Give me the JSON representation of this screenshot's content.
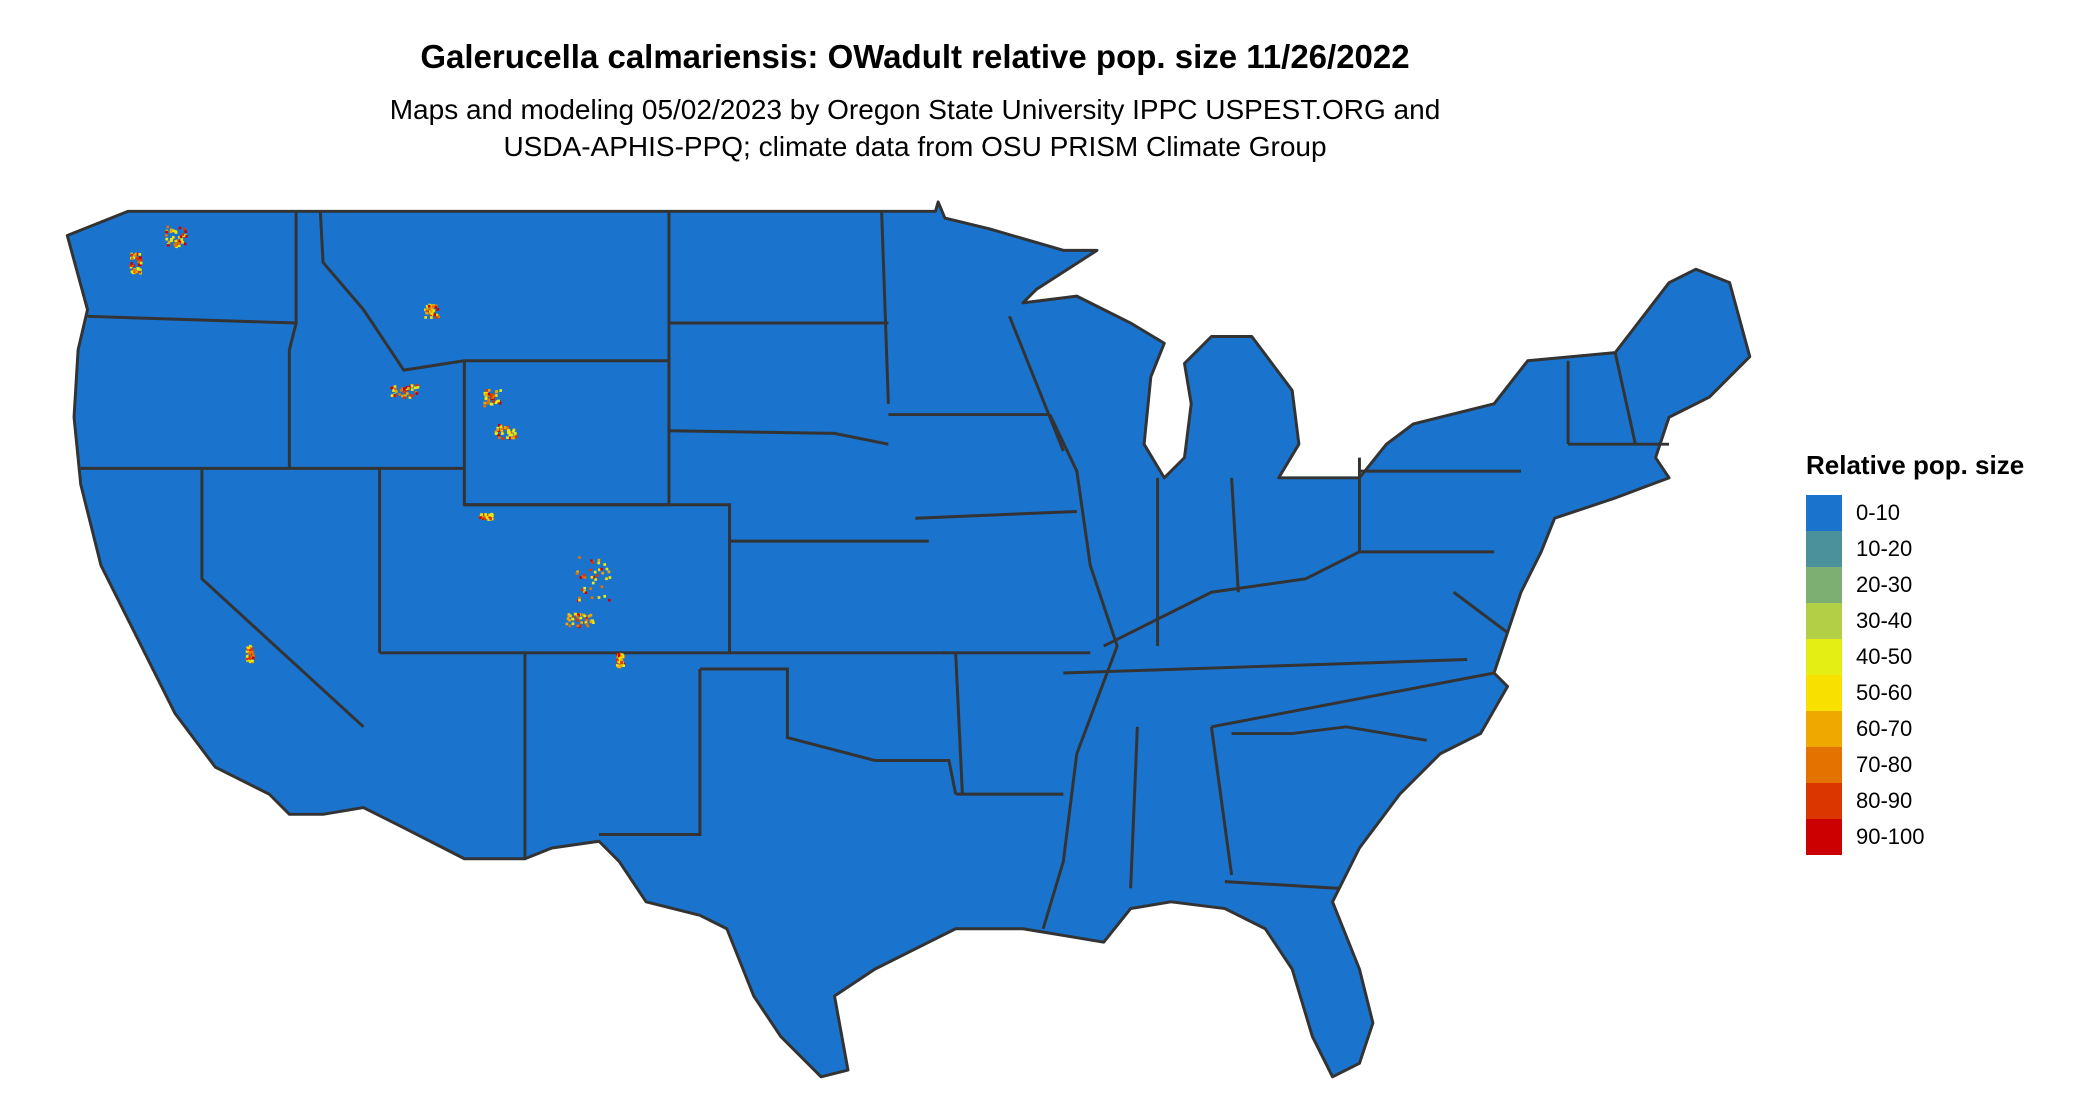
{
  "header": {
    "title": "Galerucella calmariensis: OWadult relative pop. size 11/26/2022",
    "subtitle_line1": "Maps and modeling 05/02/2023 by Oregon State University IPPC USPEST.ORG and",
    "subtitle_line2": "USDA-APHIS-PPQ; climate data from OSU PRISM Climate Group"
  },
  "map": {
    "region": "contiguous United States",
    "base_fill": "#1A73CC",
    "border_color": "#333333"
  },
  "legend": {
    "title": "Relative pop. size",
    "items": [
      {
        "label": "0-10",
        "color": "#1A73CC"
      },
      {
        "label": "10-20",
        "color": "#4A919C"
      },
      {
        "label": "20-30",
        "color": "#7EAF72"
      },
      {
        "label": "30-40",
        "color": "#B2CF45"
      },
      {
        "label": "40-50",
        "color": "#E5EE14"
      },
      {
        "label": "50-60",
        "color": "#F8E000"
      },
      {
        "label": "60-70",
        "color": "#EEA800"
      },
      {
        "label": "70-80",
        "color": "#E47200"
      },
      {
        "label": "80-90",
        "color": "#DB3500"
      },
      {
        "label": "90-100",
        "color": "#CC0000"
      }
    ]
  }
}
